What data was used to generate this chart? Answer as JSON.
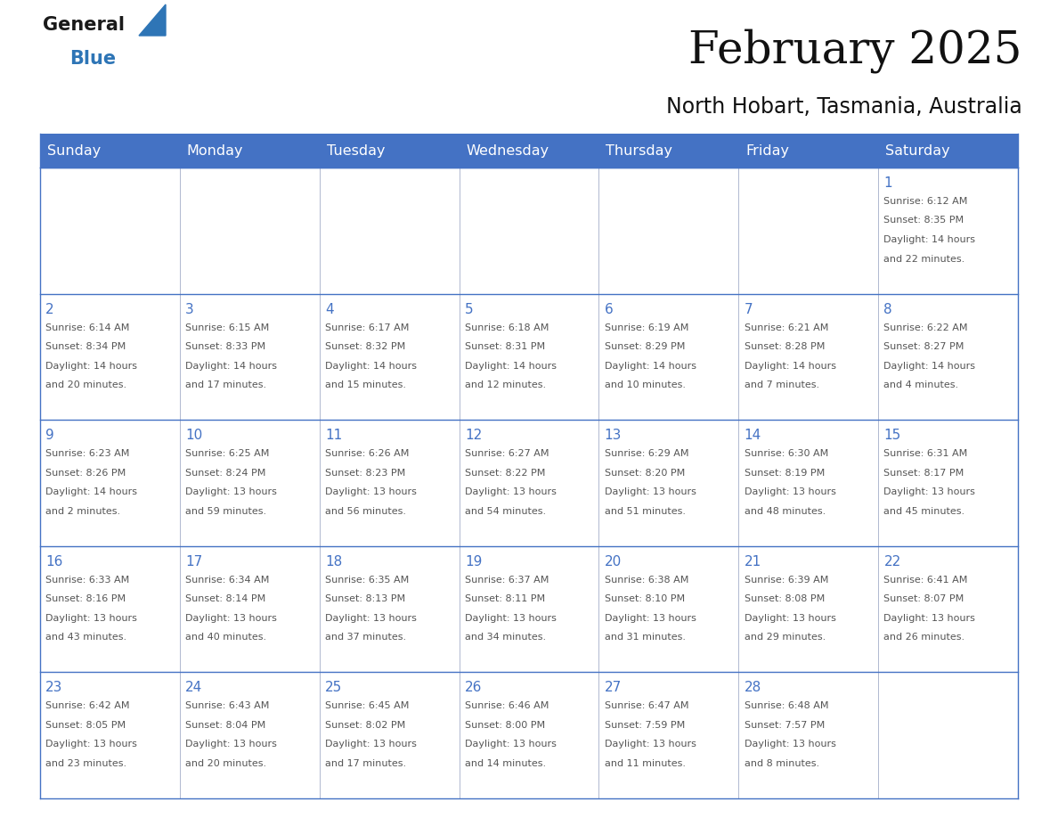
{
  "title": "February 2025",
  "subtitle": "North Hobart, Tasmania, Australia",
  "days_of_week": [
    "Sunday",
    "Monday",
    "Tuesday",
    "Wednesday",
    "Thursday",
    "Friday",
    "Saturday"
  ],
  "header_bg_color": "#4472C4",
  "header_text_color": "#FFFFFF",
  "cell_bg_color": "#FFFFFF",
  "cell_border_color": "#4472C4",
  "day_number_color": "#4472C4",
  "info_text_color": "#555555",
  "grid_line_color": "#B0B8D0",
  "background_color": "#FFFFFF",
  "logo_general_color": "#1a1a1a",
  "logo_blue_color": "#2E75B6",
  "calendar_data": [
    [
      null,
      null,
      null,
      null,
      null,
      null,
      1
    ],
    [
      2,
      3,
      4,
      5,
      6,
      7,
      8
    ],
    [
      9,
      10,
      11,
      12,
      13,
      14,
      15
    ],
    [
      16,
      17,
      18,
      19,
      20,
      21,
      22
    ],
    [
      23,
      24,
      25,
      26,
      27,
      28,
      null
    ]
  ],
  "sunrise_data": {
    "1": "6:12 AM",
    "2": "6:14 AM",
    "3": "6:15 AM",
    "4": "6:17 AM",
    "5": "6:18 AM",
    "6": "6:19 AM",
    "7": "6:21 AM",
    "8": "6:22 AM",
    "9": "6:23 AM",
    "10": "6:25 AM",
    "11": "6:26 AM",
    "12": "6:27 AM",
    "13": "6:29 AM",
    "14": "6:30 AM",
    "15": "6:31 AM",
    "16": "6:33 AM",
    "17": "6:34 AM",
    "18": "6:35 AM",
    "19": "6:37 AM",
    "20": "6:38 AM",
    "21": "6:39 AM",
    "22": "6:41 AM",
    "23": "6:42 AM",
    "24": "6:43 AM",
    "25": "6:45 AM",
    "26": "6:46 AM",
    "27": "6:47 AM",
    "28": "6:48 AM"
  },
  "sunset_data": {
    "1": "8:35 PM",
    "2": "8:34 PM",
    "3": "8:33 PM",
    "4": "8:32 PM",
    "5": "8:31 PM",
    "6": "8:29 PM",
    "7": "8:28 PM",
    "8": "8:27 PM",
    "9": "8:26 PM",
    "10": "8:24 PM",
    "11": "8:23 PM",
    "12": "8:22 PM",
    "13": "8:20 PM",
    "14": "8:19 PM",
    "15": "8:17 PM",
    "16": "8:16 PM",
    "17": "8:14 PM",
    "18": "8:13 PM",
    "19": "8:11 PM",
    "20": "8:10 PM",
    "21": "8:08 PM",
    "22": "8:07 PM",
    "23": "8:05 PM",
    "24": "8:04 PM",
    "25": "8:02 PM",
    "26": "8:00 PM",
    "27": "7:59 PM",
    "28": "7:57 PM"
  },
  "daylight_hours": {
    "1": "14",
    "2": "14",
    "3": "14",
    "4": "14",
    "5": "14",
    "6": "14",
    "7": "14",
    "8": "14",
    "9": "14",
    "10": "13",
    "11": "13",
    "12": "13",
    "13": "13",
    "14": "13",
    "15": "13",
    "16": "13",
    "17": "13",
    "18": "13",
    "19": "13",
    "20": "13",
    "21": "13",
    "22": "13",
    "23": "13",
    "24": "13",
    "25": "13",
    "26": "13",
    "27": "13",
    "28": "13"
  },
  "daylight_minutes": {
    "1": "22",
    "2": "20",
    "3": "17",
    "4": "15",
    "5": "12",
    "6": "10",
    "7": "7",
    "8": "4",
    "9": "2",
    "10": "59",
    "11": "56",
    "12": "54",
    "13": "51",
    "14": "48",
    "15": "45",
    "16": "43",
    "17": "40",
    "18": "37",
    "19": "34",
    "20": "31",
    "21": "29",
    "22": "26",
    "23": "23",
    "24": "20",
    "25": "17",
    "26": "14",
    "27": "11",
    "28": "8"
  },
  "num_weeks": 5,
  "num_cols": 7,
  "fig_width": 11.88,
  "fig_height": 9.18,
  "cell_text_fontsize": 8.0,
  "day_number_fontsize": 11,
  "header_fontsize": 11.5,
  "title_fontsize": 36,
  "subtitle_fontsize": 17
}
